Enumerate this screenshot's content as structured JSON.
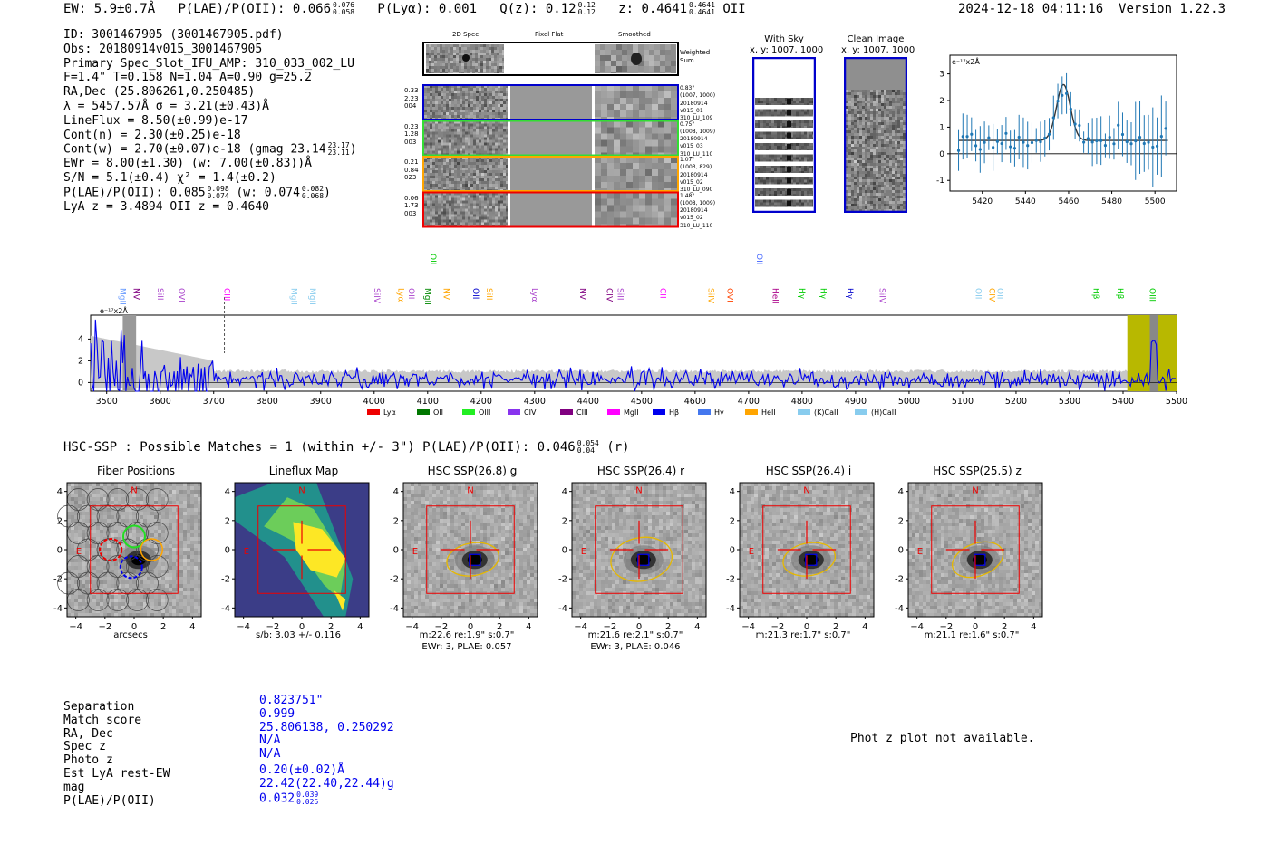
{
  "header": {
    "ew_label": "EW: 5.9±0.7Å",
    "plae_label": "P(LAE)/P(OII): 0.066",
    "plae_hi": "0.076",
    "plae_lo": "0.058",
    "plya_label": "P(Lyα): 0.001",
    "qz_label": "Q(z): 0.12",
    "qz_hi": "0.12",
    "qz_lo": "0.12",
    "z_label": "z: 0.4641",
    "z_hi": "0.4641",
    "z_lo": "0.4641",
    "z_line": "OII",
    "timestamp": "2024-12-18 04:11:16",
    "version": "Version 1.22.3"
  },
  "info": {
    "id": "ID: 3001467905 (3001467905.pdf)",
    "obs": "Obs: 20180914v015_3001467905",
    "primary": "Primary Spec_Slot_IFU_AMP: 310_033_002_LU",
    "params": "F=1.4\"  T=0.158  N=1.04  A=0.90  g=25.2",
    "radec": "RA,Dec (25.806261,0.250485)",
    "lambda": "λ = 5457.57Å  σ = 3.21(±0.43)Å",
    "lineflux": "LineFlux = 8.50(±0.99)e-17",
    "contn": "Cont(n) = 2.30(±0.25)e-18",
    "contw": "Cont(w) = 2.70(±0.07)e-18 (gmag 23.14",
    "contw_hi": "23.17",
    "contw_lo": "23.11",
    "ewr": "EWr = 8.00(±1.30) (w: 7.00(±0.83))Å",
    "sn": "S/N = 5.1(±0.4)  χ² = 1.4(±0.2)",
    "plae": "P(LAE)/P(OII): 0.085",
    "plae_hi": "0.098",
    "plae_lo": "0.074",
    "plae_w": "(w: 0.074",
    "plae_w_hi": "0.082",
    "plae_w_lo": "0.068",
    "lyaz": "LyA z = 3.4894  OII z = 0.4640"
  },
  "cutouts": {
    "col_2d": "2D Spec",
    "col_flat": "Pixel Flat",
    "col_smooth": "Smoothed",
    "weighted": "Weighted",
    "sum": "Sum",
    "rows": [
      {
        "left": [
          "0.33",
          "2.23",
          "004"
        ],
        "right": [
          "0.83\"",
          "(1007, 1000)",
          "20180914",
          "v015_01",
          "310_LU_109"
        ],
        "color": "#0000cc"
      },
      {
        "left": [
          "0.23",
          "1.28",
          "003"
        ],
        "right": [
          "0.75\"",
          "(1008, 1009)",
          "20180914",
          "v015_03",
          "310_LU_110"
        ],
        "color": "#33dd33"
      },
      {
        "left": [
          "0.21",
          "0.84",
          "023"
        ],
        "right": [
          "1.07\"",
          "(1003, 829)",
          "20180914",
          "v015_02",
          "310_LU_090"
        ],
        "color": "#ffa500"
      },
      {
        "left": [
          "0.06",
          "1.73",
          "003"
        ],
        "right": [
          "1.48\"",
          "(1008, 1009)",
          "20180914",
          "v015_02",
          "310_LU_110"
        ],
        "color": "#ee0000"
      }
    ]
  },
  "sky": {
    "with_sky_title": "With Sky",
    "with_sky_xy": "x, y: 1007, 1000",
    "clean_title": "Clean Image",
    "clean_xy": "x, y: 1007, 1000"
  },
  "fit_chart": {
    "ylabel": "e⁻¹⁷x2Å",
    "xticks": [
      "5420",
      "5440",
      "5460",
      "5480",
      "5500"
    ],
    "yticks": [
      "3",
      "2",
      "1",
      "0",
      "-1"
    ]
  },
  "spectrum": {
    "ylabel": "e⁻¹⁷x2Å",
    "xticks": [
      "3500",
      "3600",
      "3700",
      "3800",
      "3900",
      "4000",
      "4100",
      "4200",
      "4300",
      "4400",
      "4500",
      "4600",
      "4700",
      "4800",
      "4900",
      "5000",
      "5100",
      "5200",
      "5300",
      "5400",
      "5500"
    ],
    "yticks": [
      "4",
      "2",
      "0"
    ],
    "line_labels": [
      {
        "t": "MgII",
        "c": "#6699ff"
      },
      {
        "t": "NV",
        "c": "#800080"
      },
      {
        "t": "SiII",
        "c": "#aa44cc"
      },
      {
        "t": "OVI",
        "c": "#aa44cc"
      },
      {
        "t": "CIII",
        "c": "#ff00ff"
      },
      {
        "t": "MgII",
        "c": "#88ccee"
      },
      {
        "t": "MgII",
        "c": "#88ccee"
      },
      {
        "t": "SiIV",
        "c": "#aa44cc"
      },
      {
        "t": "Lyα",
        "c": "#ffa500"
      },
      {
        "t": "OII",
        "c": "#aa44cc"
      },
      {
        "t": "MgII",
        "c": "#008800"
      },
      {
        "t": "OII",
        "c": "#00cc00"
      },
      {
        "t": "NV",
        "c": "#ffa500"
      },
      {
        "t": "OII",
        "c": "#0000cc"
      },
      {
        "t": "SiII",
        "c": "#ffa500"
      },
      {
        "t": "Lyα",
        "c": "#aa44cc"
      },
      {
        "t": "NV",
        "c": "#800080"
      },
      {
        "t": "CIV",
        "c": "#800080"
      },
      {
        "t": "SiII",
        "c": "#aa44cc"
      },
      {
        "t": "CII",
        "c": "#ff00ff"
      },
      {
        "t": "SiIV",
        "c": "#ffa500"
      },
      {
        "t": "OVI",
        "c": "#ff4400"
      },
      {
        "t": "OII",
        "c": "#4466ff"
      },
      {
        "t": "HeII",
        "c": "#aa0088"
      },
      {
        "t": "Hγ",
        "c": "#00cc00"
      },
      {
        "t": "Hγ",
        "c": "#00cc00"
      },
      {
        "t": "Hγ",
        "c": "#0000cc"
      },
      {
        "t": "SiIV",
        "c": "#aa44cc"
      },
      {
        "t": "OII",
        "c": "#88ccee"
      },
      {
        "t": "CIV",
        "c": "#ffa500"
      },
      {
        "t": "OII",
        "c": "#88ccee"
      },
      {
        "t": "Hβ",
        "c": "#00cc00"
      },
      {
        "t": "Hβ",
        "c": "#00cc00"
      },
      {
        "t": "OIII",
        "c": "#00cc00"
      }
    ],
    "legend": [
      {
        "t": "Lyα",
        "c": "#ee0000"
      },
      {
        "t": "OII",
        "c": "#007700"
      },
      {
        "t": "OIII",
        "c": "#22ee22"
      },
      {
        "t": "CIV",
        "c": "#8833ee"
      },
      {
        "t": "CIII",
        "c": "#800080"
      },
      {
        "t": "MgII",
        "c": "#ff00ff"
      },
      {
        "t": "Hβ",
        "c": "#0000ee"
      },
      {
        "t": "Hγ",
        "c": "#4477ee"
      },
      {
        "t": "HeII",
        "c": "#ffa500"
      },
      {
        "t": "(K)CaII",
        "c": "#88ccee"
      },
      {
        "t": "(H)CaII",
        "c": "#88ccee"
      }
    ]
  },
  "hsc": {
    "header": "HSC-SSP : Possible Matches = 1 (within +/- 3\")  P(LAE)/P(OII): 0.046",
    "hi": "0.054",
    "lo": "0.04",
    "band": "(r)",
    "panels": [
      {
        "title": "Fiber Positions",
        "cap1": "arcsecs",
        "cap2": ""
      },
      {
        "title": "Lineflux Map",
        "cap1": "s/b: 3.03 +/- 0.116",
        "cap2": ""
      },
      {
        "title": "HSC SSP(26.8) g",
        "cap1": "m:22.6  re:1.9\"  s:0.7\"",
        "cap2": "EWr: 3, PLAE: 0.057"
      },
      {
        "title": "HSC SSP(26.4) r",
        "cap1": "m:21.6  re:2.1\"  s:0.7\"",
        "cap2": "EWr: 3, PLAE: 0.046"
      },
      {
        "title": "HSC SSP(26.4) i",
        "cap1": "m:21.3  re:1.7\"  s:0.7\"",
        "cap2": ""
      },
      {
        "title": "HSC SSP(25.5) z",
        "cap1": "m:21.1  re:1.6\"  s:0.7\"",
        "cap2": ""
      }
    ],
    "ticks": [
      "4",
      "2",
      "0",
      "-2",
      "-4"
    ],
    "xticks": [
      "−4",
      "−2",
      "0",
      "2",
      "4"
    ],
    "north": "N",
    "east": "E"
  },
  "match_table": {
    "labels": [
      "Separation",
      "Match score",
      "RA, Dec",
      "Spec z",
      "Photo z",
      "Est LyA rest-EW",
      "mag",
      "P(LAE)/P(OII)"
    ],
    "values": [
      "0.823751\"",
      "0.999",
      "25.806138, 0.250292",
      "N/A",
      "N/A",
      "0.20(±0.02)Å",
      "22.42(22.40,22.44)g",
      "0.032"
    ],
    "plae_hi": "0.039",
    "plae_lo": "0.026"
  },
  "photz_message": "Phot z plot not available."
}
